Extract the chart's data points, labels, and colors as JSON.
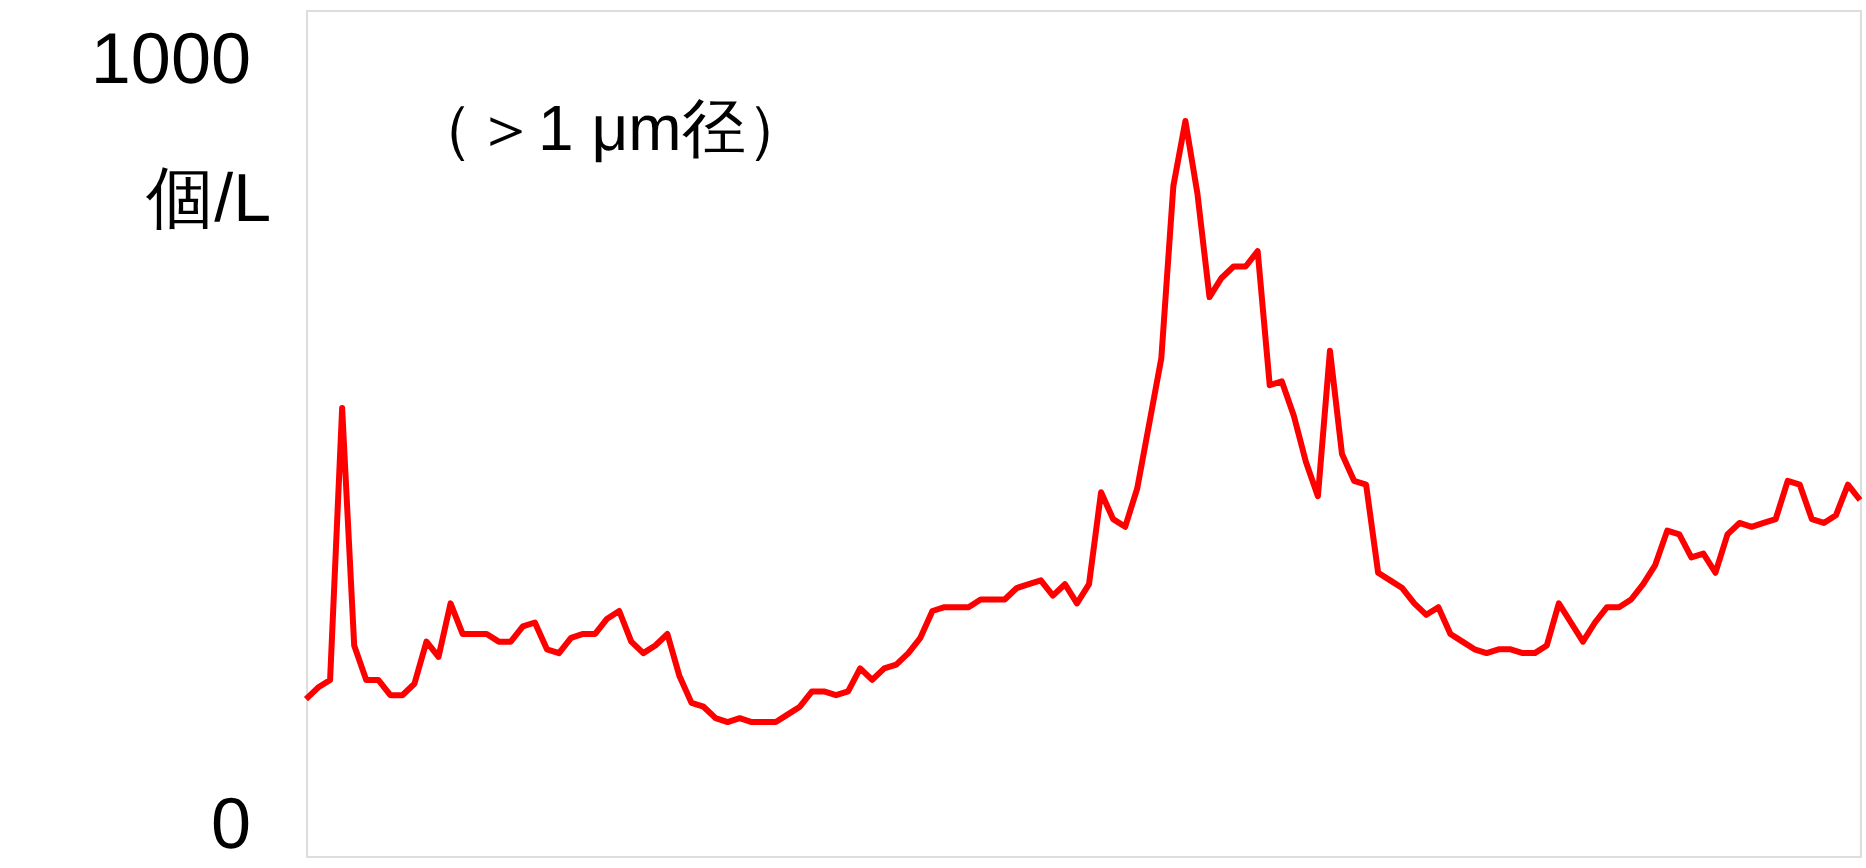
{
  "chart_data": {
    "type": "line",
    "ylabel": "個/L",
    "annotations": [
      "（＞1 μm径）"
    ],
    "categories": [
      null,
      null,
      null,
      null,
      null,
      null,
      null,
      null,
      null,
      null,
      null,
      null,
      null,
      null,
      null,
      null,
      null,
      null,
      null,
      null,
      null,
      null,
      null,
      null,
      null,
      null,
      null,
      null,
      null,
      null,
      null,
      null,
      null,
      null,
      null,
      null,
      null,
      null,
      null,
      null,
      null,
      null,
      null,
      null,
      null,
      null,
      null,
      null,
      null,
      null,
      null,
      null,
      null,
      null,
      null,
      null,
      null,
      null,
      null,
      null,
      null,
      null,
      null,
      null,
      null,
      null,
      null,
      null,
      null,
      null,
      null,
      null,
      null,
      null,
      null,
      null,
      null,
      null,
      null,
      null,
      null,
      null,
      null,
      null,
      null,
      null,
      null,
      null,
      null,
      null,
      null,
      null,
      null,
      null,
      null,
      null,
      null,
      null,
      null,
      null,
      null,
      null,
      null,
      null,
      null,
      null,
      null,
      null,
      null,
      null,
      null,
      null,
      null,
      null,
      null,
      null,
      null,
      null,
      null,
      null,
      null,
      null,
      null,
      null,
      null,
      null,
      null,
      null,
      null,
      null
    ],
    "series": [
      {
        "color": "#ff0000",
        "values": [
          165,
          180,
          190,
          545,
          235,
          190,
          190,
          170,
          170,
          185,
          240,
          220,
          290,
          250,
          250,
          250,
          240,
          240,
          260,
          265,
          230,
          225,
          245,
          250,
          250,
          270,
          280,
          240,
          225,
          235,
          250,
          195,
          160,
          155,
          140,
          135,
          140,
          135,
          135,
          135,
          145,
          155,
          175,
          175,
          170,
          175,
          205,
          190,
          205,
          210,
          225,
          245,
          280,
          285,
          285,
          285,
          295,
          295,
          295,
          310,
          315,
          320,
          300,
          315,
          290,
          315,
          435,
          400,
          390,
          440,
          525,
          610,
          835,
          920,
          825,
          690,
          715,
          730,
          730,
          750,
          575,
          580,
          535,
          475,
          430,
          620,
          485,
          450,
          445,
          330,
          320,
          310,
          290,
          275,
          285,
          250,
          240,
          230,
          225,
          230,
          230,
          225,
          225,
          235,
          290,
          265,
          240,
          265,
          285,
          285,
          295,
          315,
          340,
          385,
          380,
          350,
          355,
          330,
          380,
          395,
          390,
          395,
          400,
          450,
          445,
          400,
          395,
          405,
          445,
          425
        ]
      }
    ],
    "ylim": [
      -40,
      1065
    ],
    "yticks": [
      0,
      1000
    ],
    "grid": false
  }
}
